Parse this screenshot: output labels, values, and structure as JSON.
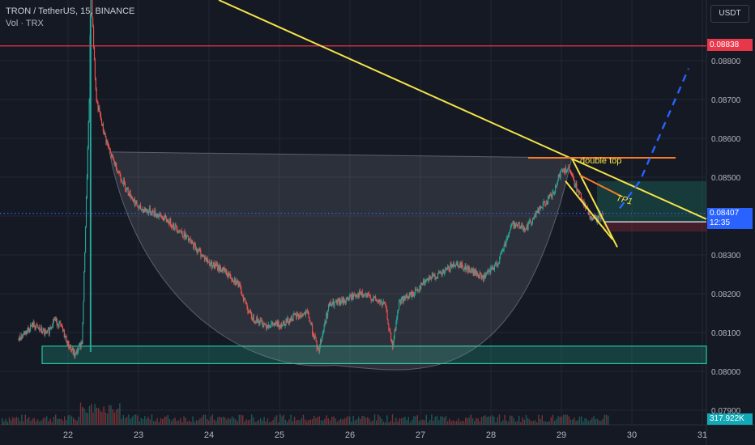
{
  "header": {
    "symbol_line": "TRON / TetherUS, 15, BINANCE",
    "indicator_line": "Vol · TRX",
    "currency_button": "USDT"
  },
  "price_axis": {
    "ticks": [
      "0.08800",
      "0.08700",
      "0.08600",
      "0.08500",
      "0.08400",
      "0.08300",
      "0.08200",
      "0.08100",
      "0.08000",
      "0.07900"
    ],
    "resistance_price": "0.08838",
    "last_price": "0.08407",
    "countdown": "12:35",
    "volume_value": "317.922K"
  },
  "time_axis": {
    "ticks": [
      "22",
      "23",
      "24",
      "25",
      "26",
      "27",
      "28",
      "29",
      "30",
      "31"
    ]
  },
  "annotations": {
    "double_top_label": "double top",
    "target_label": "TP1"
  },
  "colors": {
    "background": "#151924",
    "grid": "#232733",
    "candle_up": "#26a69a",
    "candle_down": "#ef5350",
    "trendline": "#f5e447",
    "resistance": "#e8364a",
    "neckline": "#f57c28",
    "projection": "#2962ff",
    "support_zone": "#22c7a0"
  },
  "chart_data": {
    "type": "candlestick",
    "x_unit": "day of month",
    "x_range": [
      21.3,
      31.0
    ],
    "y_range": [
      0.079,
      0.0892
    ],
    "close_path": [
      [
        21.3,
        0.08085
      ],
      [
        21.5,
        0.0812
      ],
      [
        21.7,
        0.08095
      ],
      [
        21.8,
        0.08135
      ],
      [
        21.9,
        0.08115
      ],
      [
        22.0,
        0.0807
      ],
      [
        22.1,
        0.0804
      ],
      [
        22.2,
        0.0808
      ],
      [
        22.3,
        0.087
      ],
      [
        22.32,
        0.09
      ],
      [
        22.4,
        0.087
      ],
      [
        22.5,
        0.0862
      ],
      [
        22.6,
        0.0856
      ],
      [
        22.7,
        0.0852
      ],
      [
        22.8,
        0.0848
      ],
      [
        22.9,
        0.0845
      ],
      [
        23.0,
        0.0842
      ],
      [
        23.2,
        0.0841
      ],
      [
        23.4,
        0.0839
      ],
      [
        23.6,
        0.0836
      ],
      [
        23.8,
        0.0832
      ],
      [
        24.0,
        0.0828
      ],
      [
        24.2,
        0.0826
      ],
      [
        24.4,
        0.0823
      ],
      [
        24.6,
        0.0814
      ],
      [
        24.8,
        0.0812
      ],
      [
        25.0,
        0.0812
      ],
      [
        25.2,
        0.0814
      ],
      [
        25.4,
        0.0815
      ],
      [
        25.55,
        0.0805
      ],
      [
        25.7,
        0.0817
      ],
      [
        25.9,
        0.0818
      ],
      [
        26.1,
        0.082
      ],
      [
        26.3,
        0.0819
      ],
      [
        26.5,
        0.0817
      ],
      [
        26.6,
        0.0806
      ],
      [
        26.7,
        0.0818
      ],
      [
        26.9,
        0.082
      ],
      [
        27.1,
        0.0824
      ],
      [
        27.3,
        0.0825
      ],
      [
        27.5,
        0.0828
      ],
      [
        27.7,
        0.0826
      ],
      [
        27.9,
        0.0824
      ],
      [
        28.1,
        0.0828
      ],
      [
        28.3,
        0.0838
      ],
      [
        28.5,
        0.0837
      ],
      [
        28.7,
        0.0842
      ],
      [
        28.9,
        0.0846
      ],
      [
        29.0,
        0.0852
      ],
      [
        29.1,
        0.0852
      ],
      [
        29.2,
        0.0848
      ],
      [
        29.3,
        0.0844
      ],
      [
        29.4,
        0.084
      ],
      [
        29.5,
        0.0839
      ],
      [
        29.6,
        0.08407
      ]
    ],
    "lines": {
      "resistance": 0.08838,
      "last_price": 0.08407
    }
  }
}
